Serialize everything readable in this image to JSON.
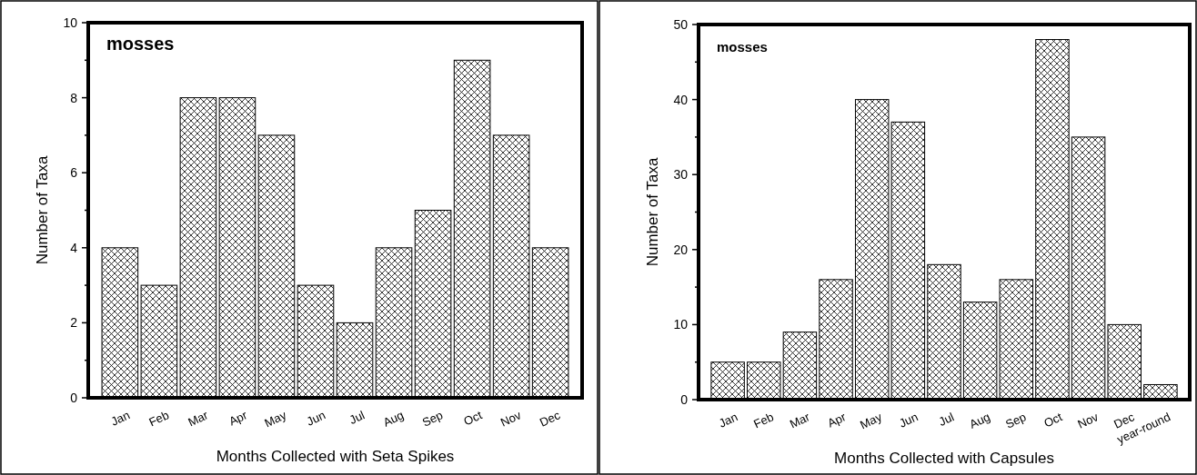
{
  "chart_data": [
    {
      "type": "bar",
      "annotations": [
        "mosses"
      ],
      "xlabel": "Months Collected with Seta Spikes",
      "ylabel": "Number of Taxa",
      "categories": [
        "Jan",
        "Feb",
        "Mar",
        "Apr",
        "May",
        "Jun",
        "Jul",
        "Aug",
        "Sep",
        "Oct",
        "Nov",
        "Dec"
      ],
      "values": [
        4,
        3,
        8,
        8,
        7,
        3,
        2,
        4,
        5,
        9,
        7,
        4
      ],
      "color": "#000000",
      "ylim": [
        0,
        10
      ],
      "yticks": [
        0,
        {
          "value": 1,
          "label": null
        },
        2,
        {
          "value": 3,
          "label": null
        },
        4,
        {
          "value": 5,
          "label": null
        },
        6,
        {
          "value": 7,
          "label": null
        },
        8,
        {
          "value": 9,
          "label": null
        },
        10
      ],
      "grid": false
    },
    {
      "type": "bar",
      "annotations": [
        "mosses"
      ],
      "xlabel": "Months Collected with Capsules",
      "ylabel": "Number of Taxa",
      "categories": [
        "Jan",
        "Feb",
        "Mar",
        "Apr",
        "May",
        "Jun",
        "Jul",
        "Aug",
        "Sep",
        "Oct",
        "Nov",
        "Dec",
        "year-round"
      ],
      "values": [
        5,
        5,
        9,
        16,
        40,
        37,
        18,
        13,
        16,
        48,
        35,
        10,
        2
      ],
      "color": "#000000",
      "ylim": [
        0,
        50
      ],
      "yticks": [
        0,
        {
          "value": 5,
          "label": null
        },
        10,
        {
          "value": 15,
          "label": null
        },
        20,
        {
          "value": 25,
          "label": null
        },
        30,
        {
          "value": 35,
          "label": null
        },
        40,
        {
          "value": 45,
          "label": null
        },
        50
      ],
      "grid": false
    }
  ]
}
